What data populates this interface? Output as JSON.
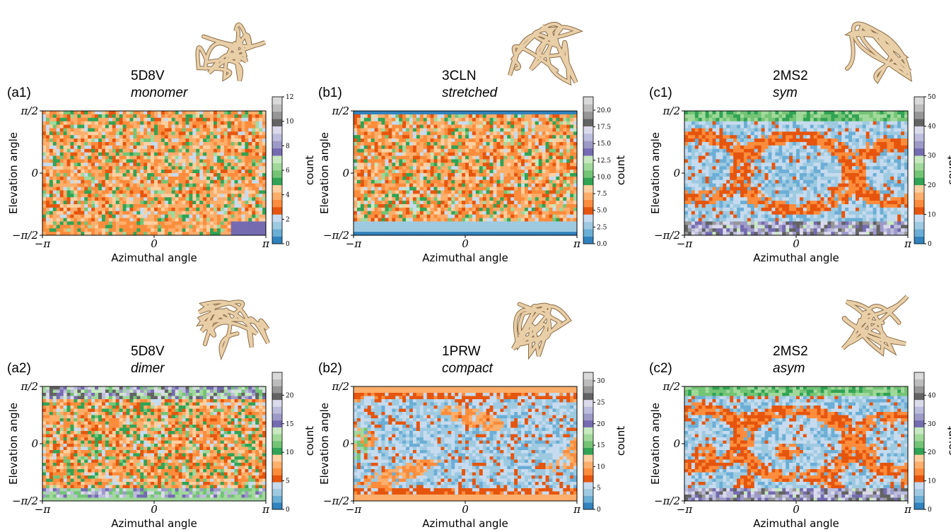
{
  "figure": {
    "x_axis_label": "Azimuthal angle",
    "y_axis_label": "Elevation angle",
    "x_ticks": [
      "−π",
      "0",
      "π"
    ],
    "y_ticks": [
      "π/2",
      "0",
      "−π/2"
    ],
    "colorbar_label": "count",
    "colormap": [
      "#3182bd",
      "#6baed6",
      "#9ecae1",
      "#c6dbef",
      "#e6550d",
      "#fd8d3c",
      "#fdae6b",
      "#fdd0a2",
      "#31a354",
      "#74c476",
      "#a1d99b",
      "#c7e9c0",
      "#756bb1",
      "#9e9ac8",
      "#bcbddc",
      "#dadaeb",
      "#636363",
      "#969696",
      "#bdbdbd",
      "#d9d9d9"
    ]
  },
  "panels": [
    {
      "id": "a1",
      "label": "(a1)",
      "protein": "5D8V",
      "state": "monomer"
    },
    {
      "id": "b1",
      "label": "(b1)",
      "protein": "3CLN",
      "state": "stretched"
    },
    {
      "id": "c1",
      "label": "(c1)",
      "protein": "2MS2",
      "state": "sym"
    },
    {
      "id": "a2",
      "label": "(a2)",
      "protein": "5D8V",
      "state": "dimer"
    },
    {
      "id": "b2",
      "label": "(b2)",
      "protein": "1PRW",
      "state": "compact"
    },
    {
      "id": "c2",
      "label": "(c2)",
      "protein": "2MS2",
      "state": "asym"
    }
  ],
  "chart_data": [
    {
      "type": "heatmap",
      "panel": "a1",
      "title": "5D8V monomer",
      "xlabel": "Azimuthal angle",
      "ylabel": "Elevation angle",
      "xlim": [
        -3.1416,
        3.1416
      ],
      "ylim": [
        -1.5708,
        1.5708
      ],
      "colorbar": {
        "label": "count",
        "range": [
          0,
          12
        ],
        "ticks": [
          "0",
          "2",
          "4",
          "6",
          "8",
          "10",
          "12"
        ]
      },
      "pattern": "noise"
    },
    {
      "type": "heatmap",
      "panel": "b1",
      "title": "3CLN stretched",
      "xlabel": "Azimuthal angle",
      "ylabel": "Elevation angle",
      "xlim": [
        -3.1416,
        3.1416
      ],
      "ylim": [
        -1.5708,
        1.5708
      ],
      "colorbar": {
        "label": "count",
        "range": [
          0,
          22
        ],
        "ticks": [
          "0.0",
          "2.5",
          "5.0",
          "7.5",
          "10.0",
          "12.5",
          "15.0",
          "17.5",
          "20.0"
        ]
      },
      "pattern": "noise-bands"
    },
    {
      "type": "heatmap",
      "panel": "c1",
      "title": "2MS2 sym",
      "xlabel": "Azimuthal angle",
      "ylabel": "Elevation angle",
      "xlim": [
        -3.1416,
        3.1416
      ],
      "ylim": [
        -1.5708,
        1.5708
      ],
      "colorbar": {
        "label": "count",
        "range": [
          0,
          50
        ],
        "ticks": [
          "0",
          "10",
          "20",
          "30",
          "40",
          "50"
        ]
      },
      "pattern": "rings"
    },
    {
      "type": "heatmap",
      "panel": "a2",
      "title": "5D8V dimer",
      "xlabel": "Azimuthal angle",
      "ylabel": "Elevation angle",
      "xlim": [
        -3.1416,
        3.1416
      ],
      "ylim": [
        -1.5708,
        1.5708
      ],
      "colorbar": {
        "label": "count",
        "range": [
          0,
          24
        ],
        "ticks": [
          "0",
          "5",
          "10",
          "15",
          "20"
        ]
      },
      "pattern": "noise-poles"
    },
    {
      "type": "heatmap",
      "panel": "b2",
      "title": "1PRW compact",
      "xlabel": "Azimuthal angle",
      "ylabel": "Elevation angle",
      "xlim": [
        -3.1416,
        3.1416
      ],
      "ylim": [
        -1.5708,
        1.5708
      ],
      "colorbar": {
        "label": "count",
        "range": [
          0,
          32
        ],
        "ticks": [
          "0",
          "5",
          "10",
          "15",
          "20",
          "25",
          "30"
        ]
      },
      "pattern": "blobs"
    },
    {
      "type": "heatmap",
      "panel": "c2",
      "title": "2MS2 asym",
      "xlabel": "Azimuthal angle",
      "ylabel": "Elevation angle",
      "xlim": [
        -3.1416,
        3.1416
      ],
      "ylim": [
        -1.5708,
        1.5708
      ],
      "colorbar": {
        "label": "count",
        "range": [
          0,
          48
        ],
        "ticks": [
          "0",
          "10",
          "20",
          "30",
          "40"
        ]
      },
      "pattern": "rings-asym"
    }
  ]
}
